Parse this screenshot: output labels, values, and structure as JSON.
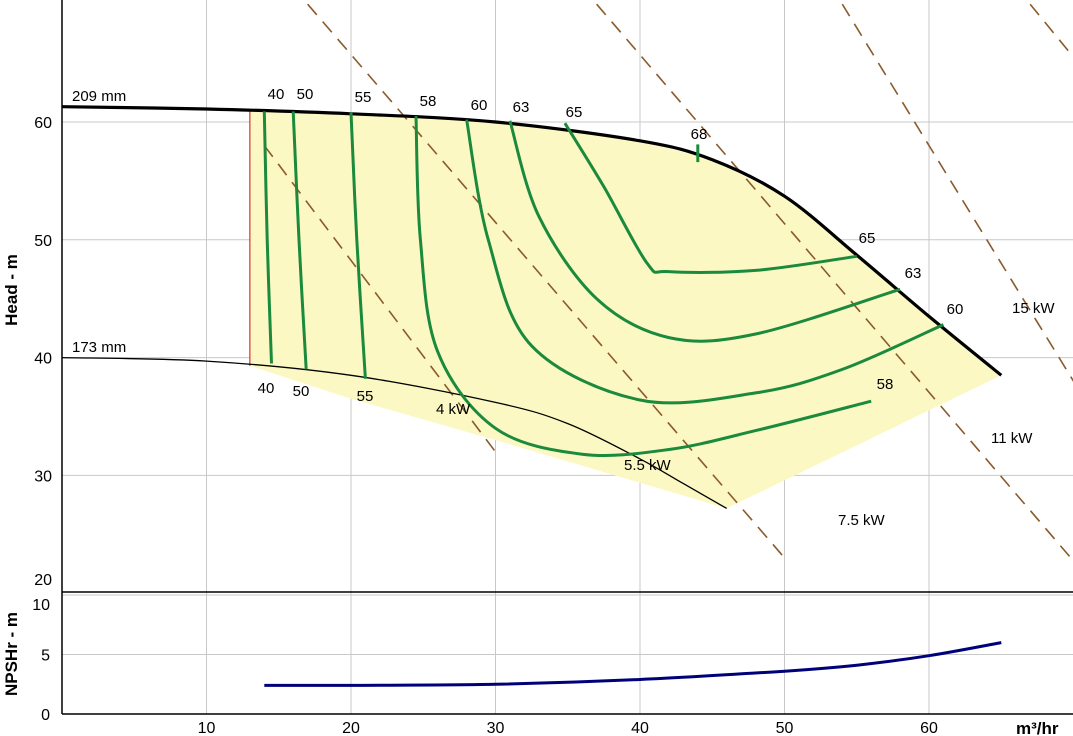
{
  "chart_data": {
    "type": "line",
    "xlabel": "m³/hr",
    "x_ticks": [
      10,
      20,
      30,
      40,
      50,
      60
    ],
    "xlim": [
      0,
      75
    ],
    "grid": true,
    "colors": {
      "performance_curve": "#000000",
      "efficiency_curve": "#1b8a3c",
      "power_line": "#8b5a2b",
      "operating_region_fill": "#fbf8c4",
      "npsh_curve": "#00007a",
      "min_flow_line": "#e03030",
      "grid": "#c8c8c8"
    },
    "head_panel": {
      "ylabel": "Head - m",
      "ylim": [
        20,
        70
      ],
      "y_ticks": [
        20,
        30,
        40,
        50,
        60
      ],
      "impeller_curves": [
        {
          "label": "209 mm",
          "x": [
            0,
            10,
            20,
            30,
            40,
            45,
            50,
            55,
            60,
            65
          ],
          "y": [
            61.3,
            61.1,
            60.7,
            60.0,
            58.4,
            56.8,
            53.7,
            48.7,
            43.5,
            38.5
          ]
        },
        {
          "label": "173 mm",
          "x": [
            0,
            10,
            20,
            30,
            35,
            40,
            43,
            46
          ],
          "y": [
            40.0,
            39.7,
            38.5,
            36.2,
            34.4,
            31.4,
            29.3,
            27.2
          ]
        }
      ],
      "operating_region": {
        "x": [
          13,
          20,
          30,
          40,
          45,
          50,
          55,
          60,
          65,
          46,
          30,
          20,
          13
        ],
        "y": [
          61.1,
          60.7,
          60.0,
          58.4,
          56.8,
          53.7,
          48.7,
          43.5,
          38.5,
          27.2,
          33.0,
          36.5,
          39.3
        ]
      },
      "min_flow": {
        "x": 13,
        "y": [
          39.3,
          61.1
        ]
      },
      "efficiency_contours": [
        {
          "label_top": "40",
          "label_bottom": "40",
          "x": [
            14.0,
            14.2,
            14.5
          ],
          "y": [
            60.9,
            50,
            39.5
          ]
        },
        {
          "label_top": "50",
          "label_bottom": "50",
          "x": [
            16.0,
            16.4,
            16.9
          ],
          "y": [
            60.9,
            50,
            39.0
          ]
        },
        {
          "label_top": "55",
          "label_bottom": "55",
          "x": [
            20.0,
            20.4,
            21.0
          ],
          "y": [
            60.8,
            50,
            38.2
          ]
        },
        {
          "label_top": "58",
          "label_right": "58",
          "x": [
            24.5,
            24.8,
            26.0,
            30.0,
            36.0,
            42.0,
            48.0,
            56.0
          ],
          "y": [
            60.5,
            50,
            40.5,
            34.0,
            31.8,
            32.2,
            33.8,
            36.3
          ]
        },
        {
          "label_top": "60",
          "label_right": "60",
          "x": [
            28.0,
            29.5,
            32.5,
            40.0,
            48.0,
            54.0,
            61.0
          ],
          "y": [
            60.2,
            50,
            41.0,
            36.4,
            37.0,
            39.0,
            42.8
          ]
        },
        {
          "label_top": "63",
          "label_right": "63",
          "x": [
            31.0,
            33.0,
            37.0,
            42.0,
            48.0,
            58.0
          ],
          "y": [
            60.1,
            52,
            45.0,
            41.7,
            42.0,
            45.8
          ]
        },
        {
          "label_top": "65",
          "label_right": "65",
          "x": [
            34.8,
            37.5,
            40.5,
            42.0,
            48.0,
            55.0
          ],
          "y": [
            59.9,
            54.5,
            48.0,
            47.3,
            47.4,
            48.6
          ]
        },
        {
          "label_top": "68",
          "x": [
            44.0,
            44.0
          ],
          "y": [
            58.1,
            56.6
          ]
        }
      ],
      "power_lines": [
        {
          "label": "4 kW",
          "x": [
            14,
            30
          ],
          "y": [
            58,
            32
          ]
        },
        {
          "label": "5.5 kW",
          "x": [
            17,
            50
          ],
          "y": [
            70,
            23
          ]
        },
        {
          "label": "7.5 kW",
          "x": [
            37,
            74
          ],
          "y": [
            70,
            17
          ]
        },
        {
          "label": "11 kW",
          "x": [
            54,
            78
          ],
          "y": [
            70,
            22
          ]
        },
        {
          "label": "15 kW",
          "x": [
            67,
            87
          ],
          "y": [
            70,
            40
          ]
        }
      ]
    },
    "npsh_panel": {
      "ylabel": "NPSHr - m",
      "ylim": [
        0,
        10
      ],
      "y_ticks": [
        0,
        5,
        10
      ],
      "curve": {
        "x": [
          14,
          20,
          30,
          40,
          50,
          55,
          60,
          65
        ],
        "y": [
          2.4,
          2.4,
          2.5,
          2.9,
          3.6,
          4.1,
          4.9,
          6.0
        ]
      }
    }
  }
}
